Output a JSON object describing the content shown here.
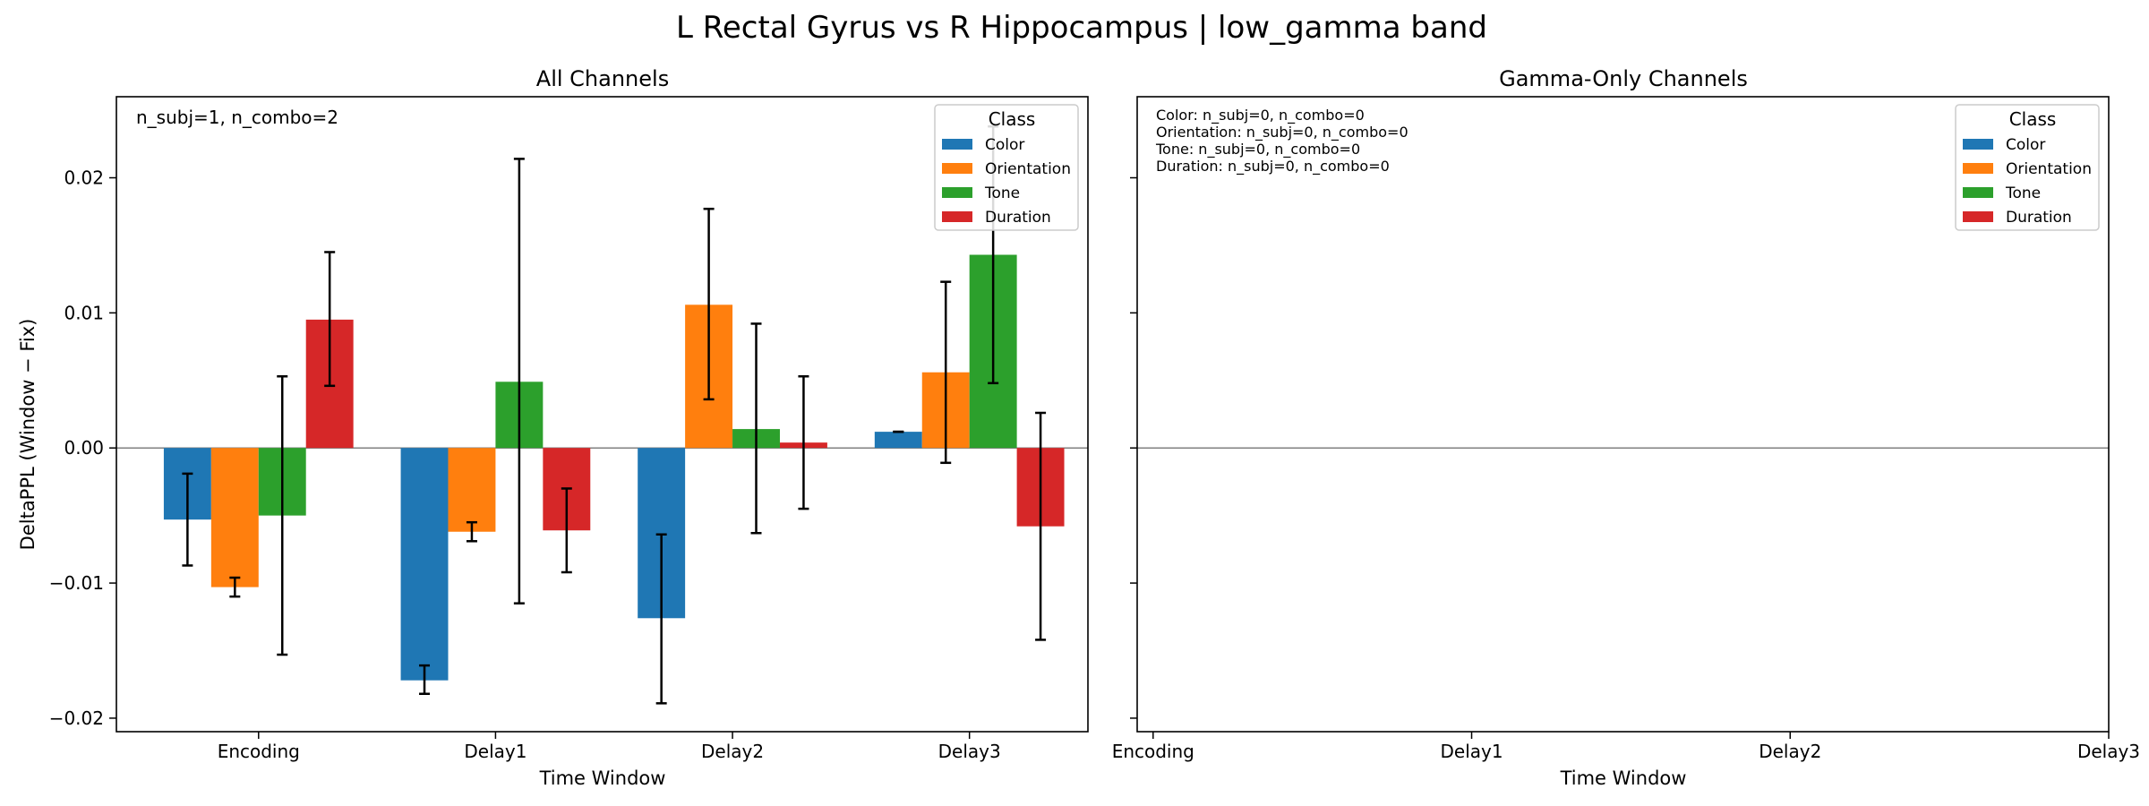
{
  "figure": {
    "suptitle": "L Rectal Gyrus vs R Hippocampus  |  low_gamma band"
  },
  "chart_data": [
    {
      "type": "bar",
      "title": "All Channels",
      "xlabel": "Time Window",
      "ylabel": "DeltaPPL (Window − Fix)",
      "categories": [
        "Encoding",
        "Delay1",
        "Delay2",
        "Delay3"
      ],
      "ylim": [
        -0.021,
        0.026
      ],
      "yticks": [
        -0.02,
        -0.01,
        0.0,
        0.01,
        0.02
      ],
      "ytick_labels": [
        "−0.02",
        "−0.01",
        "0.00",
        "0.01",
        "0.02"
      ],
      "annotation": "n_subj=1, n_combo=2",
      "legend": {
        "title": "Class",
        "position": "top-right"
      },
      "colors": [
        "#1f77b4",
        "#ff7f0e",
        "#2ca02c",
        "#d62728"
      ],
      "series": [
        {
          "name": "Color",
          "values": [
            -0.0053,
            -0.0172,
            -0.0126,
            0.0012
          ],
          "err_low": [
            -0.0087,
            -0.0182,
            -0.0189,
            0.0012
          ],
          "err_high": [
            -0.0019,
            -0.0161,
            -0.0064,
            0.0012
          ]
        },
        {
          "name": "Orientation",
          "values": [
            -0.0103,
            -0.0062,
            0.0106,
            0.0056
          ],
          "err_low": [
            -0.011,
            -0.0069,
            0.0036,
            -0.0011
          ],
          "err_high": [
            -0.0096,
            -0.0055,
            0.0177,
            0.0123
          ]
        },
        {
          "name": "Tone",
          "values": [
            -0.005,
            0.0049,
            0.0014,
            0.0143
          ],
          "err_low": [
            -0.0153,
            -0.0115,
            -0.0063,
            0.0048
          ],
          "err_high": [
            0.0053,
            0.0214,
            0.0092,
            0.0238
          ]
        },
        {
          "name": "Duration",
          "values": [
            0.0095,
            -0.0061,
            0.0004,
            -0.0058
          ],
          "err_low": [
            0.0046,
            -0.0092,
            -0.0045,
            -0.0142
          ],
          "err_high": [
            0.0145,
            -0.003,
            0.0053,
            0.0026
          ]
        }
      ],
      "grid": false
    },
    {
      "type": "bar",
      "title": "Gamma-Only Channels",
      "xlabel": "Time Window",
      "categories": [
        "Encoding",
        "Delay1",
        "Delay2",
        "Delay3"
      ],
      "ylim": [
        -0.021,
        0.026
      ],
      "annotation_lines": [
        "Color: n_subj=0, n_combo=0",
        "Orientation: n_subj=0, n_combo=0",
        "Tone: n_subj=0, n_combo=0",
        "Duration: n_subj=0, n_combo=0"
      ],
      "legend": {
        "title": "Class",
        "position": "top-right"
      },
      "series_names": [
        "Color",
        "Orientation",
        "Tone",
        "Duration"
      ],
      "colors": [
        "#1f77b4",
        "#ff7f0e",
        "#2ca02c",
        "#d62728"
      ],
      "grid": false
    }
  ]
}
